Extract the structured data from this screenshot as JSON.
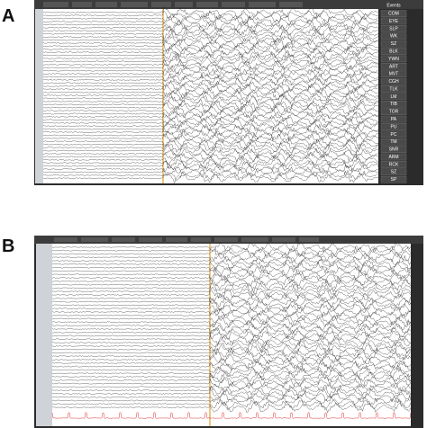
{
  "panels": [
    {
      "label": "A",
      "events_title": "Events",
      "event_buttons": [
        "COM",
        "EYE",
        "SLP",
        "WK",
        "SZ",
        "BLK",
        "YWN",
        "ART",
        "MVT",
        "CGH",
        "TLK",
        "LM",
        "TIB",
        "TOR",
        "PA",
        "PU",
        "PC",
        "TM",
        "SNR",
        "ARM",
        "RCK",
        "SZ",
        "SP"
      ]
    },
    {
      "label": "B"
    }
  ]
}
